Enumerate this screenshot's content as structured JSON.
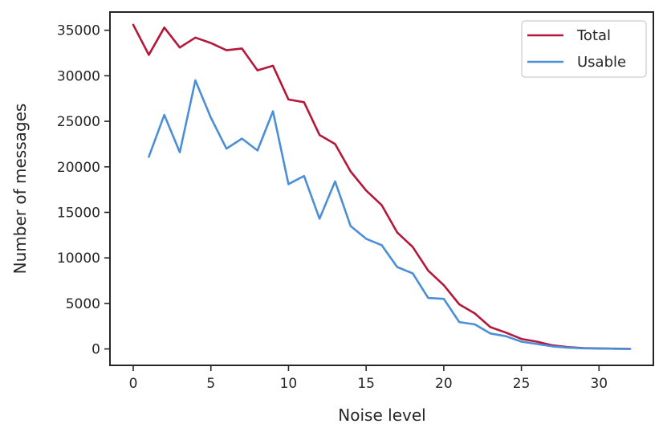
{
  "chart_data": {
    "type": "line",
    "title": "",
    "xlabel": "Noise level",
    "ylabel": "Number of messages",
    "xlim": [
      -1.5,
      33.5
    ],
    "ylim": [
      -1800,
      37000
    ],
    "xticks": [
      0,
      5,
      10,
      15,
      20,
      25,
      30
    ],
    "yticks": [
      0,
      5000,
      10000,
      15000,
      20000,
      25000,
      30000,
      35000
    ],
    "xtick_labels": [
      "0",
      "5",
      "10",
      "15",
      "20",
      "25",
      "30"
    ],
    "ytick_labels": [
      "0",
      "5000",
      "10000",
      "15000",
      "20000",
      "25000",
      "30000",
      "35000"
    ],
    "grid": false,
    "legend_position": "top-right",
    "series": [
      {
        "name": "Total",
        "color": "#b5173b",
        "x": [
          0,
          1,
          2,
          3,
          4,
          5,
          6,
          7,
          8,
          9,
          10,
          11,
          12,
          13,
          14,
          15,
          16,
          17,
          18,
          19,
          20,
          21,
          22,
          23,
          24,
          25,
          26,
          27,
          28,
          29,
          30,
          31,
          32
        ],
        "y": [
          35600,
          32300,
          35300,
          33100,
          34200,
          33600,
          32800,
          33000,
          30600,
          31100,
          27400,
          27100,
          23500,
          22500,
          19500,
          17400,
          15800,
          12800,
          11200,
          8600,
          7000,
          4900,
          3900,
          2400,
          1800,
          1100,
          800,
          400,
          200,
          100,
          60,
          30,
          10
        ]
      },
      {
        "name": "Usable",
        "color": "#4a8fd7",
        "x": [
          1,
          2,
          3,
          4,
          5,
          6,
          7,
          8,
          9,
          10,
          11,
          12,
          13,
          14,
          15,
          16,
          17,
          18,
          19,
          20,
          21,
          22,
          23,
          24,
          25,
          26,
          27,
          28,
          29,
          30,
          31,
          32
        ],
        "y": [
          21100,
          25700,
          21600,
          29500,
          25400,
          22000,
          23100,
          21800,
          26100,
          18100,
          19000,
          14300,
          18400,
          13500,
          12100,
          11400,
          9000,
          8300,
          5600,
          5500,
          2950,
          2700,
          1700,
          1400,
          800,
          550,
          280,
          150,
          70,
          40,
          20,
          5
        ]
      }
    ]
  }
}
